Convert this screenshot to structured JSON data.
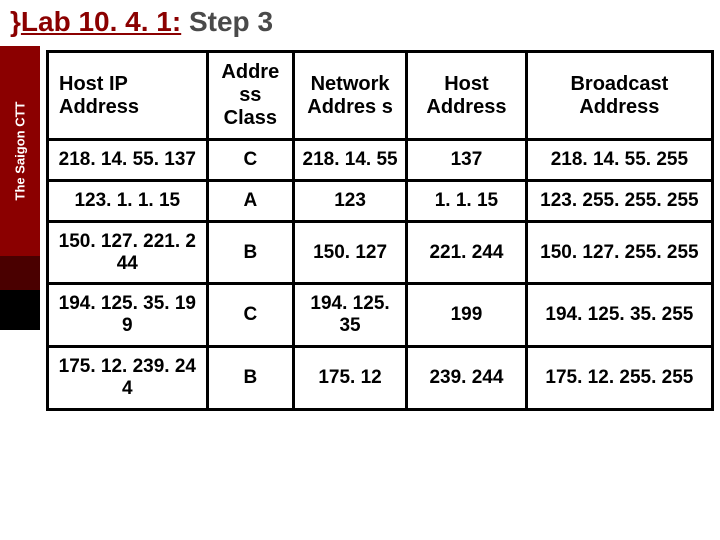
{
  "title": {
    "brace": "}",
    "lab": "Lab 10. 4. 1:",
    "step": " Step 3"
  },
  "sidebar": {
    "label": "The Saigon CTT"
  },
  "table": {
    "headers": {
      "hostip": "Host IP Address",
      "class": "Addre ss Class",
      "network": "Network Addres s",
      "host": "Host Address",
      "broadcast": "Broadcast Address"
    },
    "rows": [
      {
        "hostip": "218. 14. 55. 137",
        "class": "C",
        "network": "218. 14. 55",
        "host": "137",
        "broadcast": "218. 14. 55. 255"
      },
      {
        "hostip": "123. 1. 1. 15",
        "class": "A",
        "network": "123",
        "host": "1. 1. 15",
        "broadcast": "123. 255. 255. 255"
      },
      {
        "hostip": "150. 127. 221. 2 44",
        "class": "B",
        "network": "150. 127",
        "host": "221. 244",
        "broadcast": "150. 127. 255. 255"
      },
      {
        "hostip": "194. 125. 35. 19 9",
        "class": "C",
        "network": "194. 125. 35",
        "host": "199",
        "broadcast": "194. 125. 35. 255"
      },
      {
        "hostip": "175. 12. 239. 24 4",
        "class": "B",
        "network": "175. 12",
        "host": "239. 244",
        "broadcast": "175. 12. 255. 255"
      }
    ]
  },
  "style": {
    "accent": "#8b0000",
    "border": "#000000",
    "header_fontsize": 20,
    "cell_fontsize": 19
  }
}
